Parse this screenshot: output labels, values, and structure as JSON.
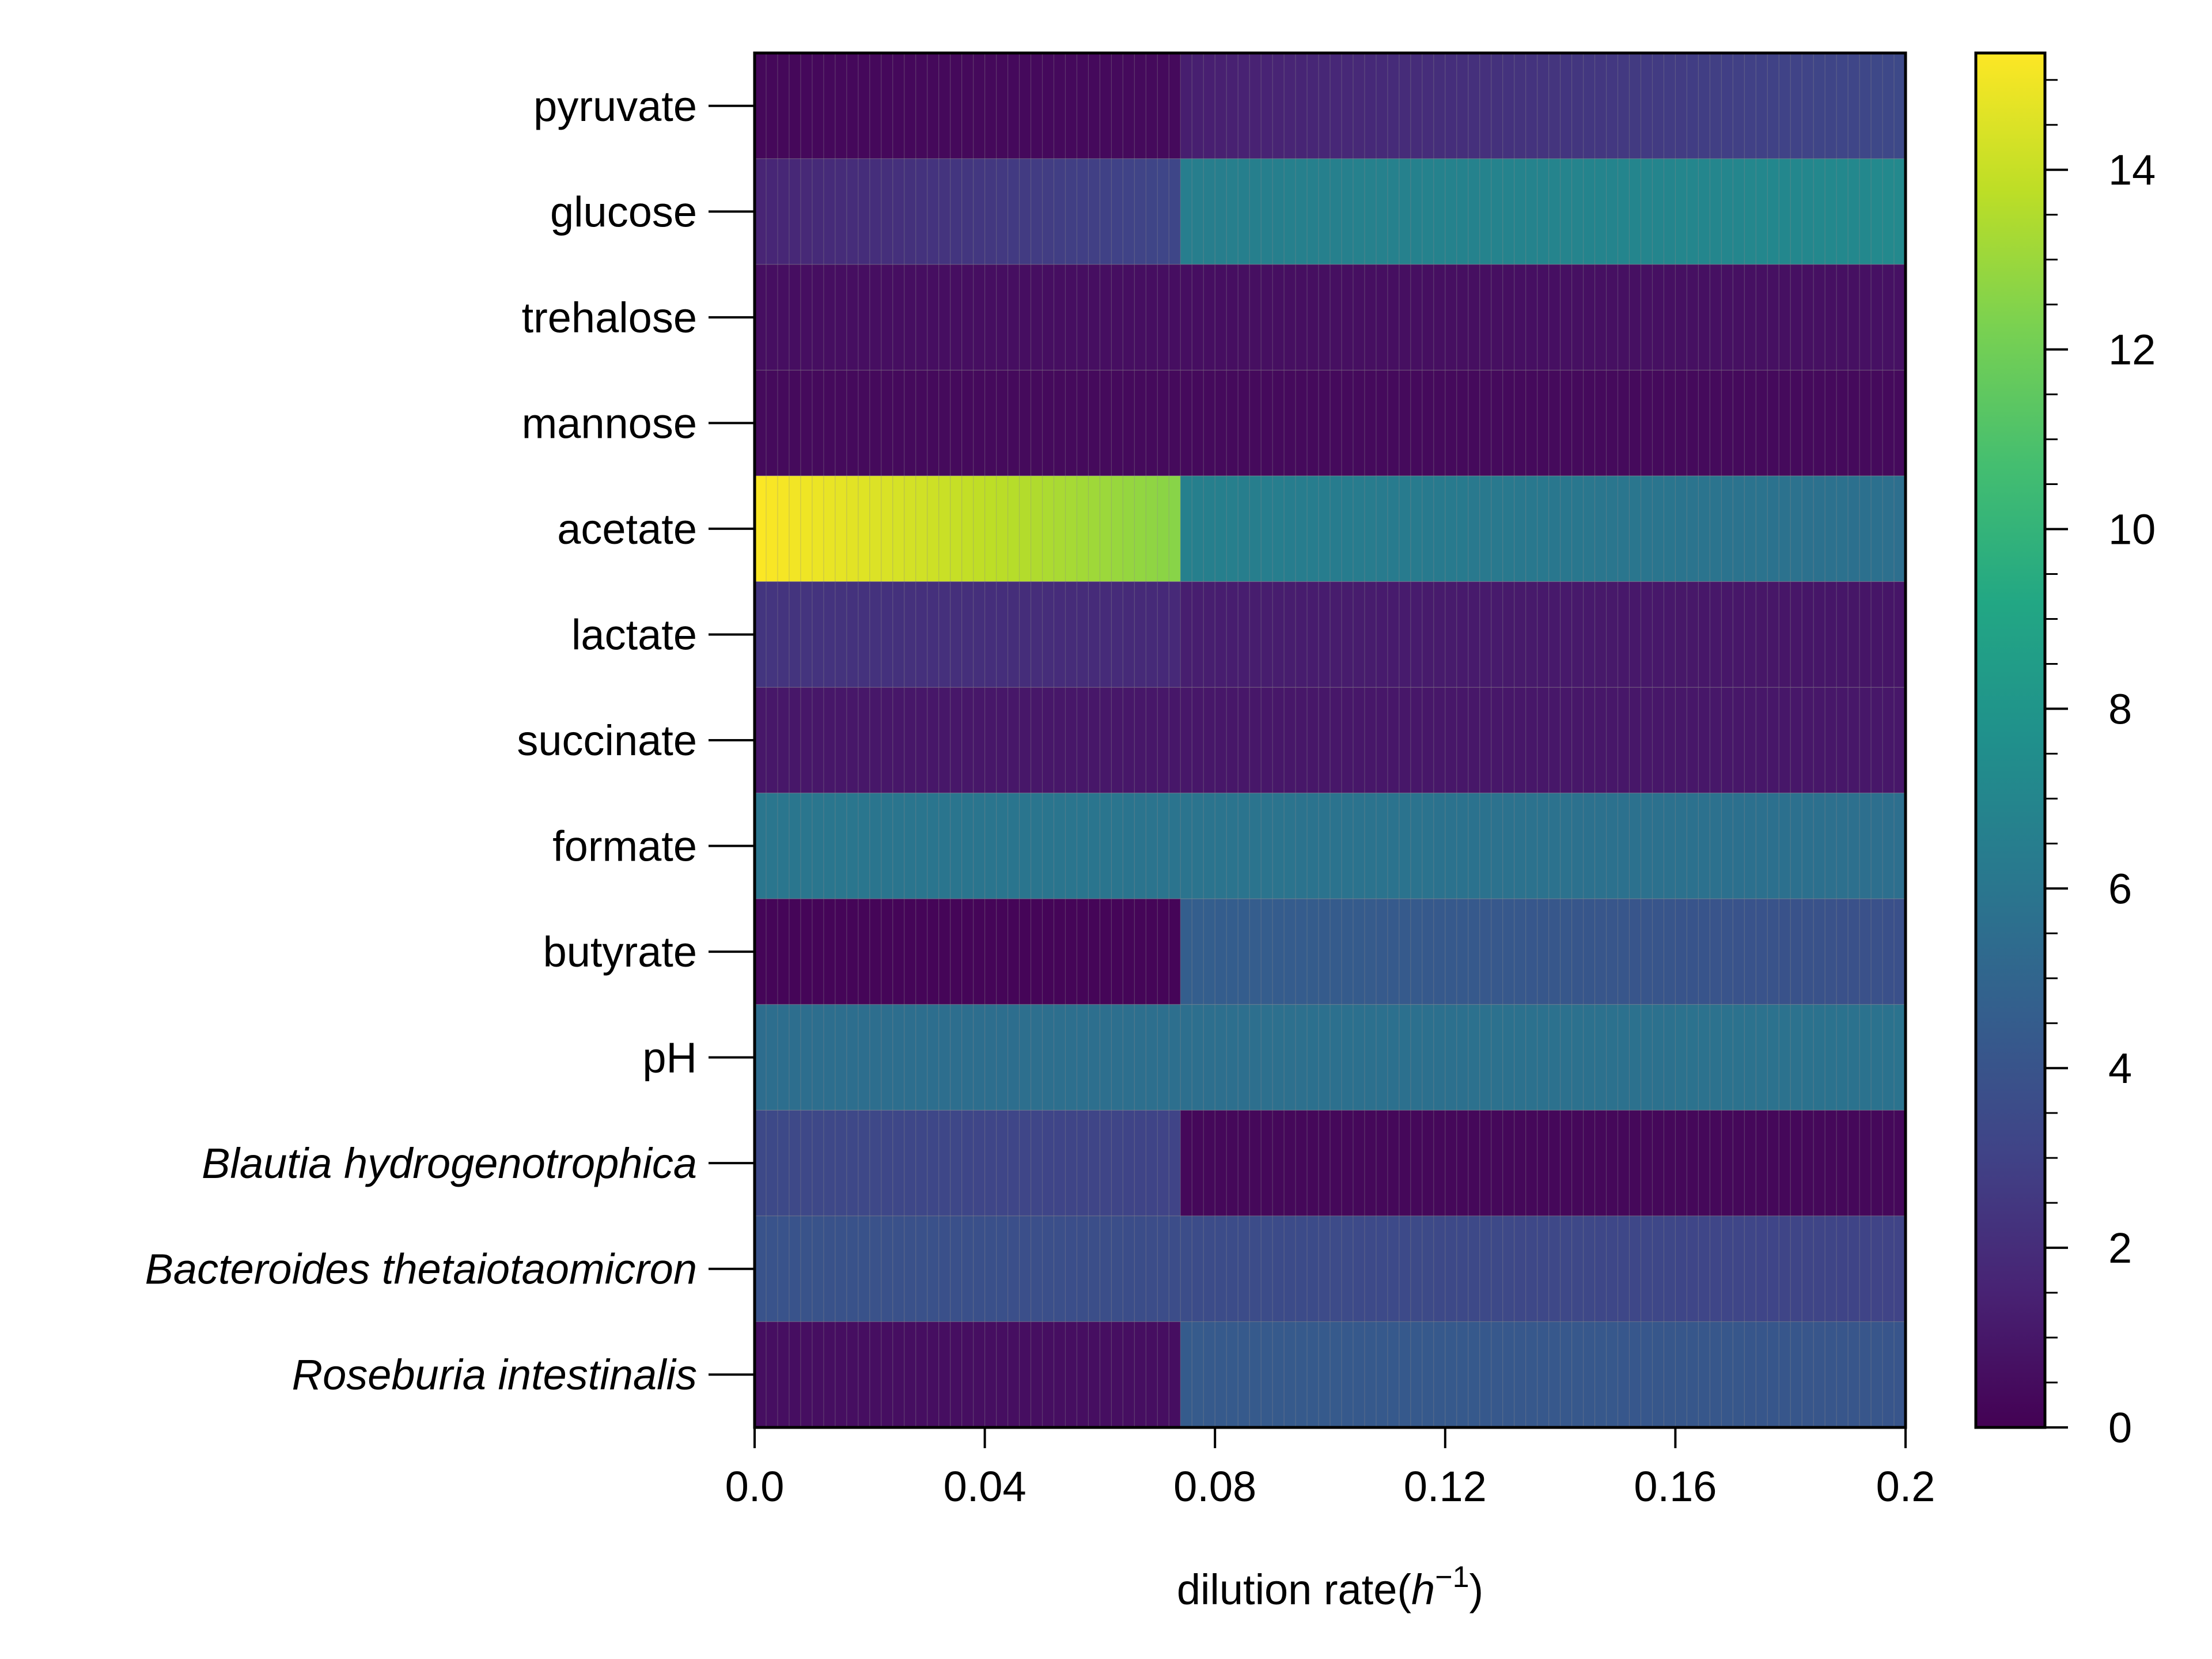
{
  "chart_data": {
    "type": "heatmap",
    "title": "",
    "xlabel_text": "dilution rate(",
    "xlabel_math_base": "h",
    "xlabel_math_exp": "−1",
    "xlabel_close": ")",
    "xlim": [
      0.0,
      0.2
    ],
    "xticks": [
      0.0,
      0.04,
      0.08,
      0.12,
      0.16,
      0.2
    ],
    "xtick_labels": [
      "0.0",
      "0.04",
      "0.08",
      "0.12",
      "0.16",
      "0.2"
    ],
    "colormap": "viridis",
    "color_range": [
      0,
      15.3
    ],
    "colorbar_ticks": [
      0,
      2,
      4,
      6,
      8,
      10,
      12,
      14
    ],
    "colorbar_tick_labels": [
      "0",
      "2",
      "4",
      "6",
      "8",
      "10",
      "12",
      "14"
    ],
    "x_breakpoints": [
      0.075
    ],
    "rows": [
      {
        "label": "pyruvate",
        "italic": false,
        "start": 0.3,
        "end": 0.4,
        "start2": 1.3,
        "end2": 3.4
      },
      {
        "label": "glucose",
        "italic": false,
        "start": 1.6,
        "end": 3.3,
        "start2": 6.5,
        "end2": 7.2
      },
      {
        "label": "trehalose",
        "italic": false,
        "start": 0.6,
        "end": 0.6,
        "start2": 0.6,
        "end2": 0.7
      },
      {
        "label": "mannose",
        "italic": false,
        "start": 0.4,
        "end": 0.4,
        "start2": 0.4,
        "end2": 0.4
      },
      {
        "label": "acetate",
        "italic": false,
        "start": 15.3,
        "end": 12.5,
        "start2": 6.6,
        "end2": 5.6
      },
      {
        "label": "lactate",
        "italic": false,
        "start": 2.4,
        "end": 1.8,
        "start2": 1.3,
        "end2": 0.9
      },
      {
        "label": "succinate",
        "italic": false,
        "start": 1.0,
        "end": 1.0,
        "start2": 1.0,
        "end2": 1.0
      },
      {
        "label": "formate",
        "italic": false,
        "start": 6.0,
        "end": 5.9,
        "start2": 5.9,
        "end2": 5.6
      },
      {
        "label": "butyrate",
        "italic": false,
        "start": 0.2,
        "end": 0.2,
        "start2": 4.6,
        "end2": 3.8
      },
      {
        "label": "pH",
        "italic": false,
        "start": 5.5,
        "end": 5.6,
        "start2": 5.6,
        "end2": 5.8
      },
      {
        "label": "Blautia hydrogenotrophica",
        "italic": true,
        "start": 3.4,
        "end": 3.1,
        "start2": 0.3,
        "end2": 0.3
      },
      {
        "label": "Bacteroides thetaiotaomicron",
        "italic": true,
        "start": 4.0,
        "end": 3.6,
        "start2": 3.6,
        "end2": 3.1
      },
      {
        "label": "Roseburia intestinalis",
        "italic": true,
        "start": 0.6,
        "end": 0.6,
        "start2": 4.4,
        "end2": 4.1
      }
    ]
  }
}
